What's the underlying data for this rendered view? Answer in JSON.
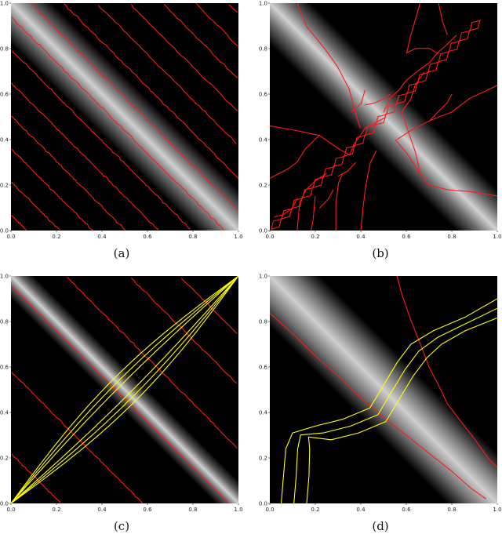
{
  "figure": {
    "ticks": [
      "0.0",
      "0.2",
      "0.4",
      "0.6",
      "0.8",
      "1.0"
    ],
    "panels": [
      {
        "id": "a",
        "caption": "(a)"
      },
      {
        "id": "b",
        "caption": "(b)"
      },
      {
        "id": "c",
        "caption": "(c)"
      },
      {
        "id": "d",
        "caption": "(d)"
      }
    ]
  },
  "colors": {
    "contour": "#ff1a1a",
    "path": "#ffff00",
    "background": "#000000",
    "band": "#d0d0d0"
  }
}
